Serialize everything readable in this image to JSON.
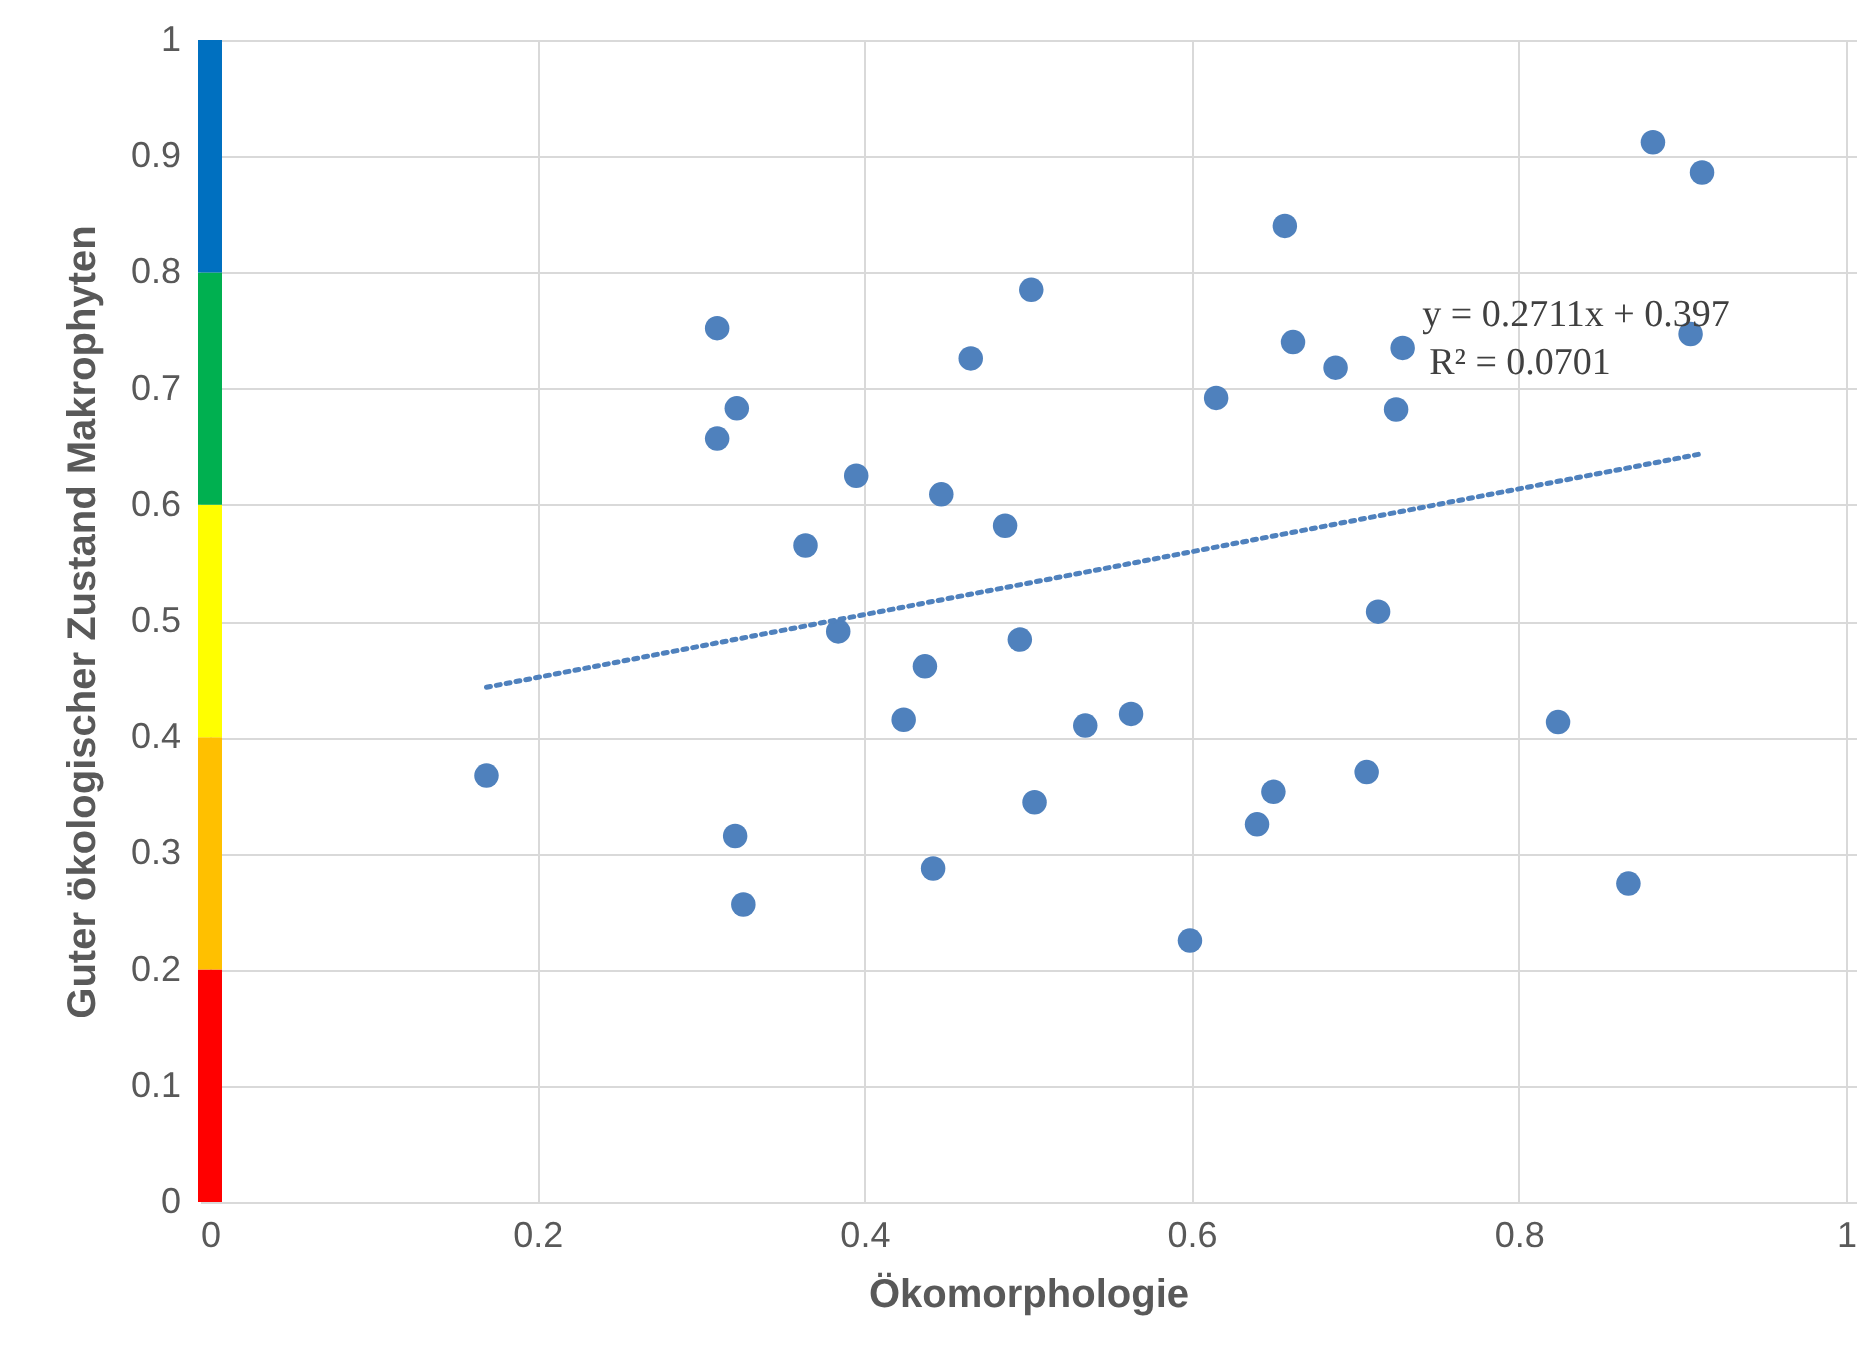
{
  "chart_data": {
    "type": "scatter",
    "xlabel": "Ökomorphologie",
    "ylabel": "Guter ökologischer Zustand Makrophyten",
    "xlim": [
      0,
      1
    ],
    "ylim": [
      0,
      1
    ],
    "xticks": [
      0,
      0.2,
      0.4,
      0.6,
      0.8,
      1
    ],
    "yticks": [
      0,
      0.1,
      0.2,
      0.3,
      0.4,
      0.5,
      0.6,
      0.7,
      0.8,
      0.9,
      1
    ],
    "grid": true,
    "series": [
      {
        "type": "scatter",
        "marker": "circle",
        "color": "#4f81bd",
        "x": [
          0.169,
          0.31,
          0.31,
          0.322,
          0.321,
          0.326,
          0.364,
          0.384,
          0.395,
          0.424,
          0.437,
          0.442,
          0.447,
          0.465,
          0.486,
          0.495,
          0.502,
          0.504,
          0.535,
          0.563,
          0.599,
          0.615,
          0.64,
          0.65,
          0.657,
          0.662,
          0.688,
          0.707,
          0.714,
          0.725,
          0.729,
          0.824,
          0.867,
          0.882,
          0.905,
          0.912
        ],
        "values": [
          0.367,
          0.657,
          0.752,
          0.683,
          0.315,
          0.256,
          0.565,
          0.491,
          0.625,
          0.415,
          0.461,
          0.287,
          0.609,
          0.726,
          0.582,
          0.484,
          0.785,
          0.344,
          0.41,
          0.42,
          0.225,
          0.692,
          0.325,
          0.353,
          0.84,
          0.74,
          0.718,
          0.37,
          0.508,
          0.682,
          0.735,
          0.413,
          0.274,
          0.912,
          0.747,
          0.886
        ]
      },
      {
        "type": "line",
        "color": "#4f81bd",
        "line_style": "dotted",
        "x": [
          0.169,
          0.912
        ],
        "values": [
          0.443,
          0.644
        ]
      },
      {
        "type": "bar",
        "color": "#ff0000",
        "x": [
          0
        ],
        "values": [
          0.2
        ]
      },
      {
        "type": "bar",
        "color": "#ffc000",
        "x": [
          0
        ],
        "values": [
          0.2
        ]
      },
      {
        "type": "bar",
        "color": "#ffff00",
        "x": [
          0
        ],
        "values": [
          0.2
        ]
      },
      {
        "type": "bar",
        "color": "#00b050",
        "x": [
          0
        ],
        "values": [
          0.2
        ]
      },
      {
        "type": "bar",
        "color": "#0070c0",
        "x": [
          0
        ],
        "values": [
          0.2
        ]
      }
    ],
    "stacked": true,
    "annotations": [
      "y = 0.2711x + 0.397",
      "R² = 0.0701"
    ]
  }
}
